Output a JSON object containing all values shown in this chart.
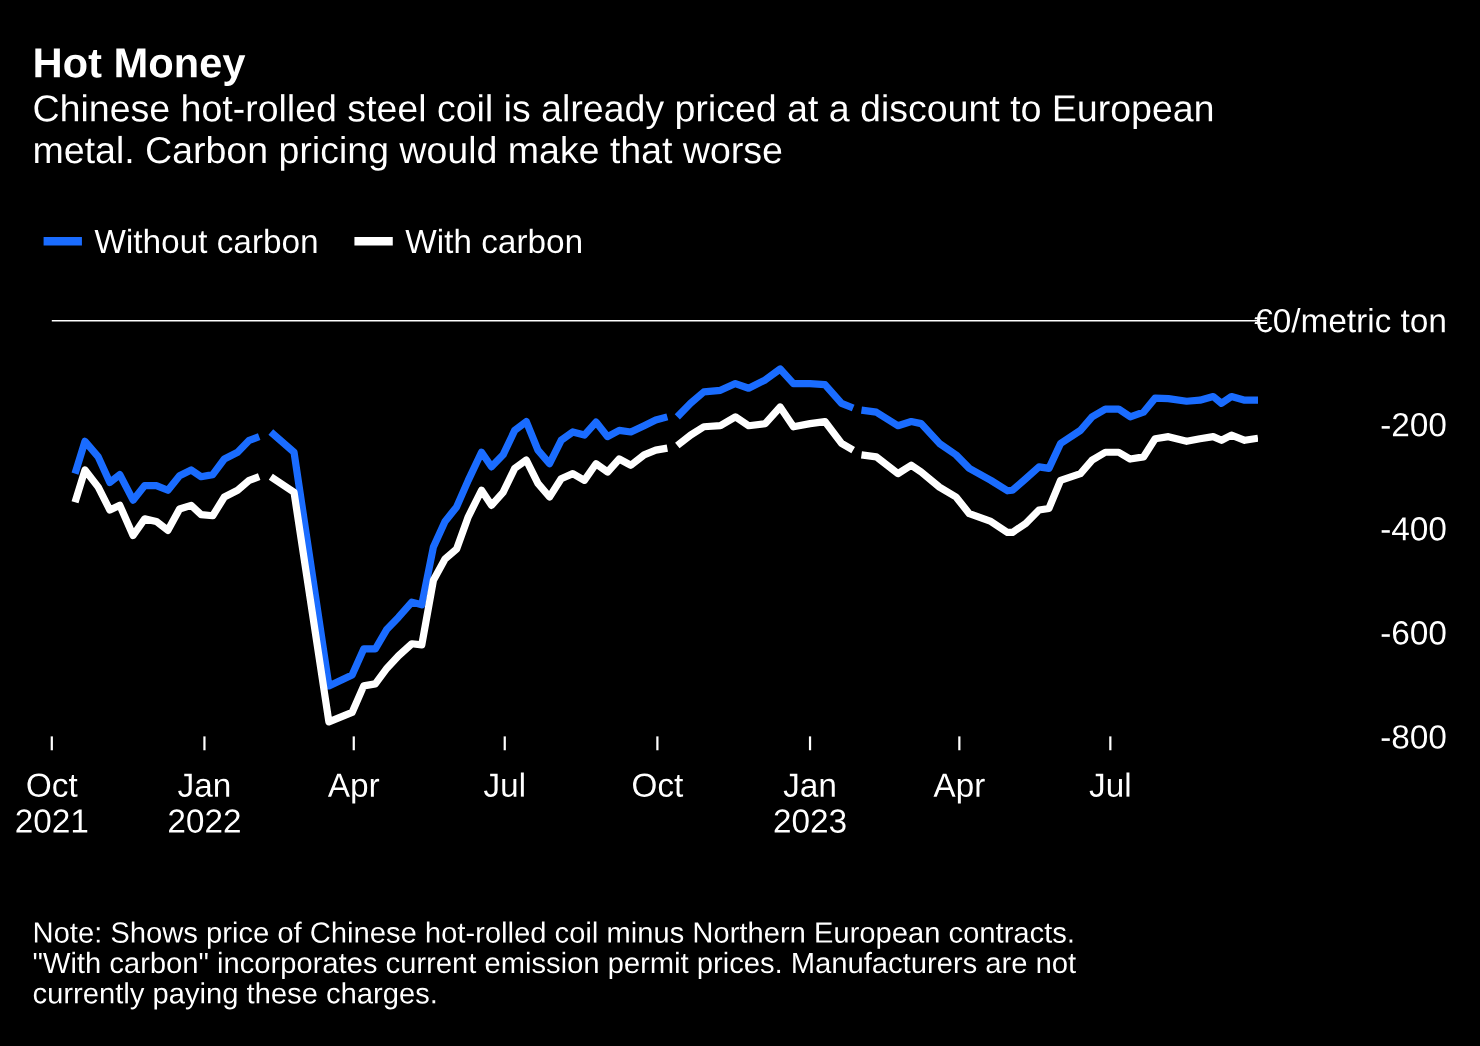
{
  "chart_data": {
    "type": "line",
    "title": "Hot Money",
    "subtitle": "Chinese hot-rolled steel coil is already priced at a discount to European\nmetal. Carbon pricing would make that worse",
    "x": [
      "2021-10-15",
      "2021-10-21",
      "2021-10-29",
      "2021-11-05",
      "2021-11-11",
      "2021-11-19",
      "2021-11-26",
      "2021-12-03",
      "2021-12-10",
      "2021-12-17",
      "2021-12-24",
      "2021-12-30",
      "2022-01-06",
      "2022-01-13",
      "2022-01-21",
      "2022-01-28",
      "2022-02-03",
      "2022-02-06",
      "2022-02-10",
      "2022-02-24",
      "2022-03-17",
      "2022-03-31",
      "2022-04-07",
      "2022-04-14",
      "2022-04-21",
      "2022-04-28",
      "2022-05-06",
      "2022-05-12",
      "2022-05-19",
      "2022-05-26",
      "2022-06-02",
      "2022-06-09",
      "2022-06-17",
      "2022-06-23",
      "2022-06-30",
      "2022-07-07",
      "2022-07-14",
      "2022-07-21",
      "2022-07-28",
      "2022-08-04",
      "2022-08-11",
      "2022-08-18",
      "2022-08-25",
      "2022-09-01",
      "2022-09-08",
      "2022-09-15",
      "2022-09-23",
      "2022-09-30",
      "2022-10-07",
      "2022-10-10",
      "2022-10-13",
      "2022-10-21",
      "2022-10-29",
      "2022-11-08",
      "2022-11-17",
      "2022-11-25",
      "2022-12-05",
      "2022-12-14",
      "2022-12-22",
      "2023-01-01",
      "2023-01-10",
      "2023-01-20",
      "2023-01-27",
      "2023-01-30",
      "2023-02-01",
      "2023-02-10",
      "2023-02-23",
      "2023-03-03",
      "2023-03-09",
      "2023-03-20",
      "2023-03-30",
      "2023-04-07",
      "2023-04-20",
      "2023-04-30",
      "2023-05-03",
      "2023-05-11",
      "2023-05-19",
      "2023-05-25",
      "2023-06-01",
      "2023-06-13",
      "2023-06-20",
      "2023-06-28",
      "2023-07-06",
      "2023-07-13",
      "2023-07-21",
      "2023-07-28",
      "2023-08-05",
      "2023-08-16",
      "2023-08-24",
      "2023-09-01",
      "2023-09-06",
      "2023-09-12",
      "2023-09-20",
      "2023-09-28"
    ],
    "series": [
      {
        "name": "Without carbon",
        "color": "#1a6cff",
        "values": [
          -295,
          -233,
          -263,
          -312,
          -297,
          -346,
          -318,
          -318,
          -327,
          -299,
          -288,
          -301,
          -297,
          -267,
          -254,
          -231,
          -224,
          null,
          -215,
          -254,
          -703,
          -682,
          -632,
          -632,
          -594,
          -571,
          -542,
          -547,
          -436,
          -387,
          -359,
          -308,
          -254,
          -282,
          -259,
          -212,
          -195,
          -250,
          -276,
          -231,
          -215,
          -221,
          -196,
          -224,
          -212,
          -215,
          -203,
          -192,
          -186,
          null,
          -186,
          -160,
          -138,
          -135,
          -122,
          -131,
          -115,
          -94,
          -122,
          -122,
          -124,
          -160,
          -169,
          null,
          -173,
          -177,
          -203,
          -195,
          -199,
          -237,
          -259,
          -285,
          -308,
          -328,
          -327,
          -305,
          -282,
          -285,
          -237,
          -212,
          -186,
          -171,
          -171,
          -186,
          -177,
          -150,
          -151,
          -156,
          -154,
          -147,
          -160,
          -147,
          -154,
          -154
        ]
      },
      {
        "name": "With carbon",
        "color": "#ffffff",
        "values": [
          -350,
          -288,
          -321,
          -365,
          -356,
          -414,
          -382,
          -387,
          -404,
          -363,
          -356,
          -374,
          -376,
          -340,
          -327,
          -308,
          -301,
          null,
          -301,
          -331,
          -772,
          -754,
          -703,
          -699,
          -669,
          -645,
          -622,
          -624,
          -500,
          -459,
          -440,
          -378,
          -327,
          -356,
          -331,
          -285,
          -269,
          -314,
          -340,
          -305,
          -295,
          -308,
          -276,
          -292,
          -267,
          -279,
          -259,
          -250,
          -246,
          null,
          -241,
          -221,
          -205,
          -203,
          -186,
          -203,
          -199,
          -167,
          -205,
          -199,
          -195,
          -237,
          -250,
          null,
          -259,
          -263,
          -295,
          -279,
          -292,
          -321,
          -340,
          -372,
          -387,
          -408,
          -408,
          -391,
          -365,
          -362,
          -308,
          -295,
          -269,
          -254,
          -254,
          -267,
          -263,
          -228,
          -224,
          -233,
          -228,
          -224,
          -231,
          -221,
          -231,
          -227
        ]
      }
    ],
    "xticks": [
      {
        "value": "2021-10-01",
        "label": "Oct\n2021"
      },
      {
        "value": "2022-01-01",
        "label": "Jan\n2022"
      },
      {
        "value": "2022-04-01",
        "label": "Apr"
      },
      {
        "value": "2022-07-01",
        "label": "Jul"
      },
      {
        "value": "2022-10-01",
        "label": "Oct"
      },
      {
        "value": "2023-01-01",
        "label": "Jan\n2023"
      },
      {
        "value": "2023-04-01",
        "label": "Apr"
      },
      {
        "value": "2023-07-01",
        "label": "Jul"
      }
    ],
    "xlim": [
      "2021-10-01",
      "2023-09-28"
    ],
    "ylim": [
      -800,
      0
    ],
    "yticks": [
      {
        "value": 0,
        "label": "€0/metric ton"
      },
      -200,
      -400,
      -600,
      -800
    ],
    "ref_lines": [
      {
        "axis": "y",
        "value": 0,
        "color": "#ffffff"
      }
    ],
    "grid": false,
    "legend": "top left",
    "line_style": "solid",
    "marker": "none",
    "annotations": [
      "Note: Shows price of Chinese hot-rolled coil minus Northern European contracts.\n\"With carbon\" incorporates current emission permit prices. Manufacturers are not\ncurrently paying these charges."
    ]
  }
}
